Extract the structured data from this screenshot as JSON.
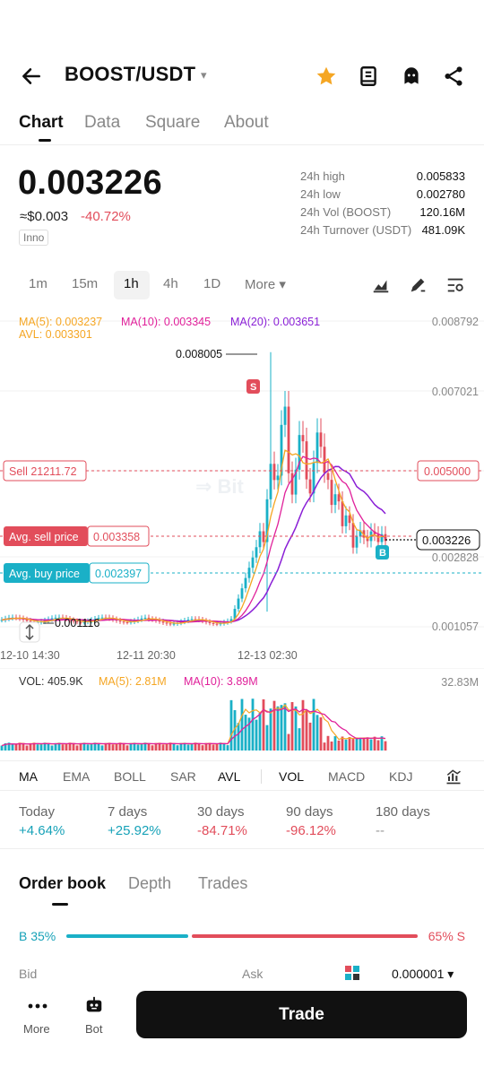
{
  "header": {
    "pair": "BOOST/USDT",
    "caret": "▾",
    "icons": [
      "back-arrow-icon",
      "star-icon",
      "notebook-icon",
      "ghost-icon",
      "share-icon"
    ],
    "star_color": "#f5a623"
  },
  "tabs": [
    "Chart",
    "Data",
    "Square",
    "About"
  ],
  "price": {
    "last": "0.003226",
    "approx": "≈$0.003",
    "change": "-40.72%",
    "tag": "Inno"
  },
  "stats": [
    {
      "label": "24h high",
      "value": "0.005833"
    },
    {
      "label": "24h low",
      "value": "0.002780"
    },
    {
      "label": "24h Vol (BOOST)",
      "value": "120.16M"
    },
    {
      "label": "24h Turnover (USDT)",
      "value": "481.09K"
    }
  ],
  "intervals": [
    "1m",
    "15m",
    "1h",
    "4h",
    "1D",
    "More ▾"
  ],
  "active_interval": "1h",
  "chart_data": {
    "type": "line",
    "ma_legend": {
      "ma5": "MA(5): 0.003237",
      "ma10": "MA(10): 0.003345",
      "ma20": "MA(20): 0.003651",
      "avl": "AVL: 0.003301"
    },
    "y_ticks": [
      "0.008792",
      "0.007021",
      "0.005000",
      "0.002828",
      "0.001057"
    ],
    "x_ticks": [
      "12-10 14:30",
      "12-11 20:30",
      "12-13 02:30"
    ],
    "ylim": [
      0.001057,
      0.008792
    ],
    "annotations": {
      "high": "0.008005",
      "low": "0.001116",
      "sell_order": "Sell 21211.72",
      "sell_order_price": "0.005000",
      "avg_sell_label": "Avg. sell price",
      "avg_sell_value": "0.003358",
      "avg_buy_label": "Avg. buy price",
      "avg_buy_value": "0.002397",
      "current": "0.003226",
      "sell_marker": "S",
      "buy_marker": "B"
    },
    "colors": {
      "up": "#1ab0c7",
      "down": "#e24d5b",
      "ma5": "#f5a623",
      "ma10": "#e0209a",
      "ma20": "#8a1fd6"
    }
  },
  "volume": {
    "vol": "VOL: 405.9K",
    "ma5": "MA(5): 2.81M",
    "ma10": "MA(10): 3.89M",
    "max": "32.83M"
  },
  "indicators": [
    "MA",
    "EMA",
    "BOLL",
    "SAR",
    "AVL",
    "VOL",
    "MACD",
    "KDJ"
  ],
  "performance": [
    {
      "label": "Today",
      "value": "+4.64%"
    },
    {
      "label": "7 days",
      "value": "+25.92%"
    },
    {
      "label": "30 days",
      "value": "-84.71%"
    },
    {
      "label": "90 days",
      "value": "-96.12%"
    },
    {
      "label": "180 days",
      "value": "--"
    }
  ],
  "orderbook": {
    "tabs": [
      "Order book",
      "Depth",
      "Trades"
    ],
    "buy_ratio": "B 35%",
    "sell_ratio": "65% S",
    "bid": "Bid",
    "ask": "Ask",
    "precision": "0.000001 ▾"
  },
  "bottom_nav": {
    "more": "More",
    "bot": "Bot",
    "trade": "Trade"
  }
}
